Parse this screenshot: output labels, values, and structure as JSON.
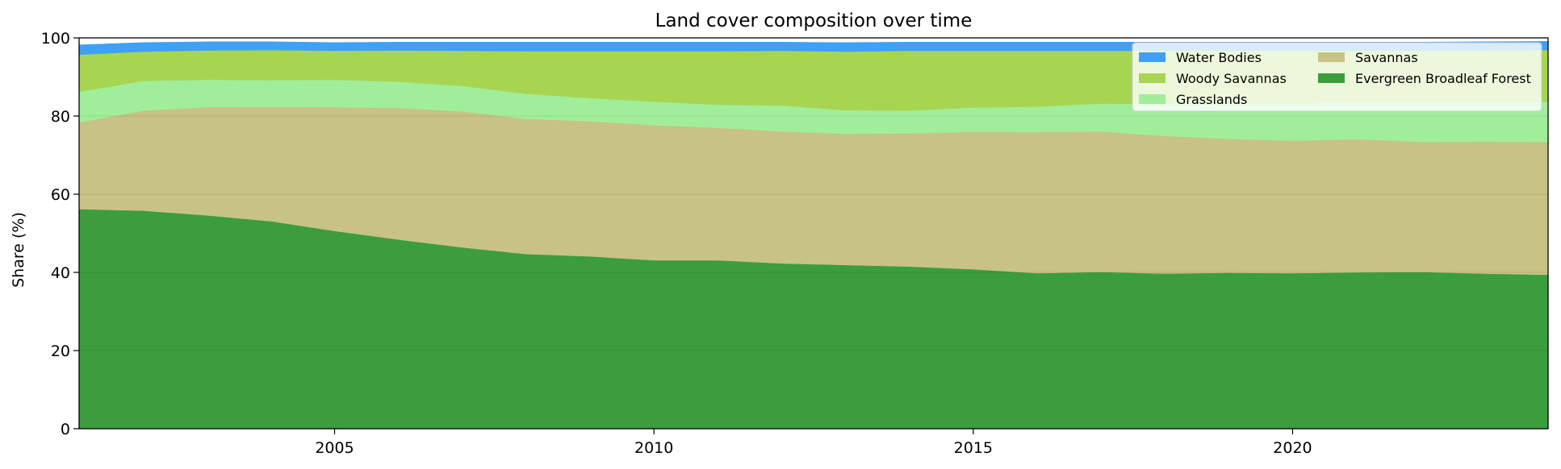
{
  "chart_data": {
    "type": "area",
    "stacked": true,
    "title": "Land cover composition over time",
    "xlabel": "",
    "ylabel": "Share (%)",
    "xlim": [
      2001,
      2024
    ],
    "ylim": [
      0,
      100
    ],
    "x_ticks": [
      2005,
      2010,
      2015,
      2020
    ],
    "y_ticks": [
      0,
      20,
      40,
      60,
      80,
      100
    ],
    "grid": true,
    "legend_position": "top-right",
    "legend_columns": 2,
    "x": [
      2001,
      2002,
      2003,
      2004,
      2005,
      2006,
      2007,
      2008,
      2009,
      2010,
      2011,
      2012,
      2013,
      2014,
      2015,
      2016,
      2017,
      2018,
      2019,
      2020,
      2021,
      2022,
      2023,
      2024
    ],
    "series": [
      {
        "name": "Evergreen Broadleaf Forest",
        "color": "#3c9d3c",
        "values": [
          56.2,
          55.8,
          54.6,
          53.1,
          50.6,
          48.4,
          46.4,
          44.7,
          44.1,
          43.1,
          43.1,
          42.3,
          41.9,
          41.5,
          40.8,
          39.8,
          40.1,
          39.7,
          39.9,
          39.8,
          40.0,
          40.1,
          39.7,
          39.4
        ]
      },
      {
        "name": "Savannas",
        "color": "#c8c285",
        "values": [
          22.2,
          25.6,
          27.7,
          29.3,
          31.7,
          33.7,
          34.8,
          34.6,
          34.6,
          34.6,
          33.9,
          33.8,
          33.6,
          34.1,
          35.2,
          36.1,
          36.0,
          35.2,
          34.3,
          33.9,
          34.1,
          33.3,
          33.8,
          34.0
        ]
      },
      {
        "name": "Grasslands",
        "color": "#a1ee9a",
        "values": [
          7.8,
          7.6,
          7.0,
          6.8,
          7.0,
          6.7,
          6.5,
          6.4,
          5.9,
          6.0,
          5.9,
          6.6,
          6.0,
          5.8,
          6.2,
          6.5,
          7.1,
          8.2,
          8.9,
          9.5,
          9.5,
          10.0,
          10.0,
          10.3
        ]
      },
      {
        "name": "Woody Savannas",
        "color": "#a7d551",
        "values": [
          9.5,
          7.5,
          7.5,
          7.7,
          7.4,
          8.0,
          9.0,
          10.9,
          12.0,
          12.9,
          13.7,
          14.0,
          15.0,
          15.3,
          14.5,
          14.3,
          13.5,
          13.6,
          13.6,
          13.5,
          13.1,
          13.3,
          13.3,
          13.2
        ]
      },
      {
        "name": "Water Bodies",
        "color": "#3ea1f5",
        "values": [
          2.5,
          2.3,
          2.2,
          2.1,
          2.1,
          2.1,
          2.2,
          2.3,
          2.3,
          2.3,
          2.3,
          2.2,
          2.3,
          2.2,
          2.2,
          2.2,
          2.2,
          2.2,
          2.2,
          2.2,
          2.2,
          2.2,
          2.2,
          2.2
        ]
      }
    ],
    "legend_order": [
      "Water Bodies",
      "Savannas",
      "Woody Savannas",
      "Evergreen Broadleaf Forest",
      "Grasslands"
    ]
  }
}
